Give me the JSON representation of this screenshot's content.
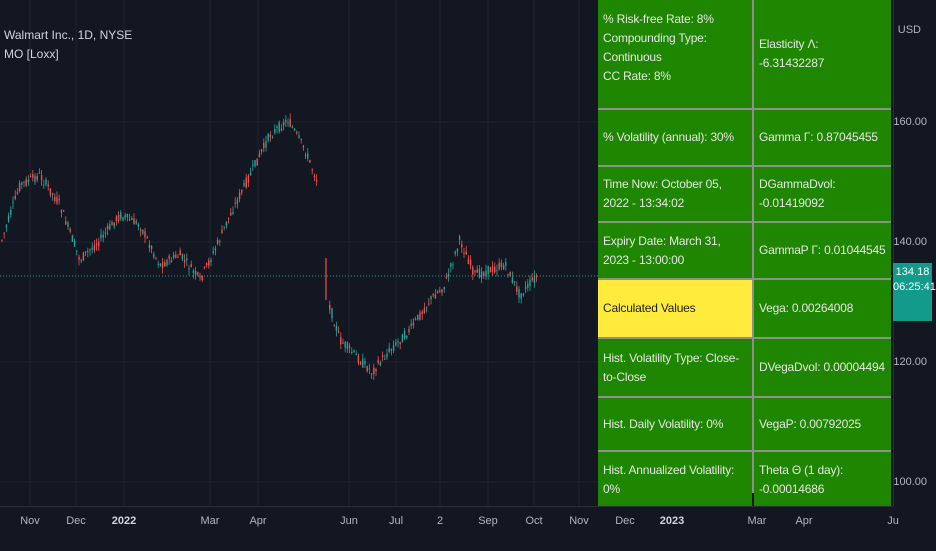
{
  "legend": {
    "symbol": "Walmart Inc., 1D, NYSE",
    "indicator": "MO [Loxx]"
  },
  "price_scale": {
    "currency": "USD",
    "ticks": [
      "160.00",
      "140.00",
      "120.00",
      "100.00"
    ],
    "current_price": "134.18",
    "countdown": "06:25:41"
  },
  "time_axis": {
    "labels": [
      "Nov",
      "Dec",
      "2022",
      "Mar",
      "Apr",
      "Jun",
      "Jul",
      "2",
      "Sep",
      "Oct",
      "Nov",
      "Dec",
      "2023",
      "Mar",
      "Apr",
      "Ju"
    ]
  },
  "table": {
    "row0_left": [
      "% Risk-free Rate: 8%",
      "Compounding Type: Continuous",
      "CC Rate: 8%"
    ],
    "row0_right": "Elasticity Λ: -6.31432287",
    "row1_left": "% Volatility (annual): 30%",
    "row1_right": "Gamma Γ: 0.87045455",
    "row2_left": "Time Now: October 05, 2022 - 13:34:02",
    "row2_right": "DGammaDvol: -0.01419092",
    "row3_left": "Expiry Date: March 31, 2023 - 13:00:00",
    "row3_right": "GammaP Γ: 0.01044545",
    "row4_left": "Calculated Values",
    "row4_right": "Vega: 0.00264008",
    "row5_left": "Hist. Volatility Type: Close-to-Close",
    "row5_right": "DVegaDvol: 0.00004494",
    "row6_left": "Hist. Daily Volatility: 0%",
    "row6_right": "VegaP: 0.00792025",
    "row7_left": "Hist. Annualized Volatility: 0%",
    "row7_right": "Theta Θ (1 day): -0.00014686"
  },
  "colors": {
    "background": "#131722",
    "table_green": "#1e8600",
    "highlight_yellow": "#ffeb3b",
    "up_candle": "#26a69a",
    "down_candle": "#ef5350",
    "price_tag": "#129b8b"
  }
}
